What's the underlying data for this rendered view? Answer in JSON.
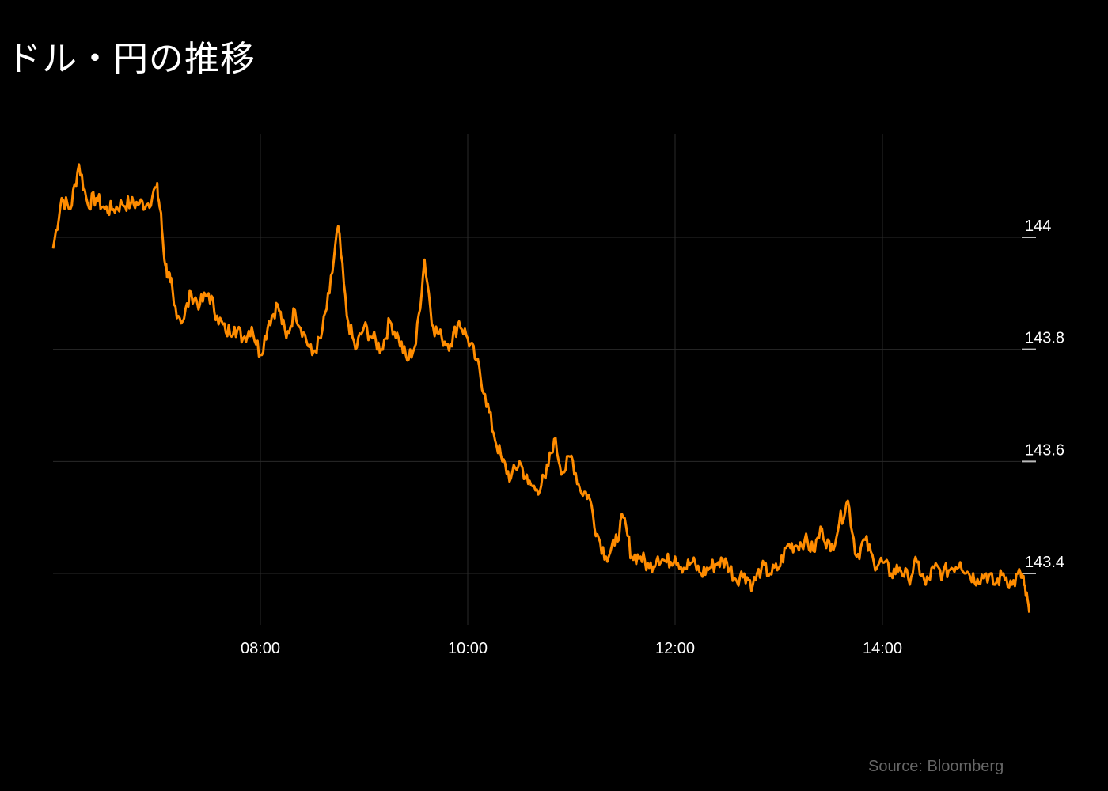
{
  "chart_data": {
    "type": "line",
    "title": "ドル・円の推移",
    "source": "Source: Bloomberg",
    "xlabel": "",
    "ylabel": "",
    "x_tick_labels": [
      "08:00",
      "10:00",
      "12:00",
      "14:00"
    ],
    "x_ticks_hours": [
      8,
      10,
      12,
      14
    ],
    "y_tick_labels": [
      "144",
      "143.8",
      "143.6",
      "143.4"
    ],
    "y_ticks": [
      144,
      143.8,
      143.6,
      143.4
    ],
    "ylim": [
      143.3,
      144.15
    ],
    "xlim": [
      "06:00",
      "15:25"
    ],
    "grid": true,
    "y_axis_side": "right",
    "colors": {
      "line": "#ff8c00",
      "background": "#000000",
      "grid": "#2a2a2a"
    },
    "series": [
      {
        "x": [
          "06:00",
          "06:05",
          "06:10",
          "06:15",
          "06:20",
          "06:25",
          "06:30",
          "06:35",
          "06:40",
          "06:45",
          "06:50",
          "06:55",
          "07:00",
          "07:02",
          "07:05",
          "07:08",
          "07:10",
          "07:15",
          "07:20",
          "07:25",
          "07:30",
          "07:35",
          "07:40",
          "07:45",
          "07:50",
          "07:55",
          "08:00",
          "08:05",
          "08:10",
          "08:15",
          "08:20",
          "08:25",
          "08:30",
          "08:35",
          "08:40",
          "08:45",
          "08:50",
          "08:55",
          "09:00",
          "09:05",
          "09:10",
          "09:15",
          "09:20",
          "09:25",
          "09:30",
          "09:35",
          "09:40",
          "09:45",
          "09:50",
          "09:55",
          "10:00",
          "10:05",
          "10:10",
          "10:15",
          "10:20",
          "10:25",
          "10:30",
          "10:35",
          "10:40",
          "10:45",
          "10:50",
          "10:55",
          "11:00",
          "11:05",
          "11:10",
          "11:15",
          "11:20",
          "11:25",
          "11:30",
          "11:35",
          "11:40",
          "11:45",
          "11:50",
          "11:55",
          "12:00",
          "12:05",
          "12:10",
          "12:15",
          "12:20",
          "12:25",
          "12:30",
          "12:35",
          "12:40",
          "12:45",
          "12:50",
          "12:55",
          "13:00",
          "13:05",
          "13:10",
          "13:15",
          "13:20",
          "13:25",
          "13:30",
          "13:35",
          "13:40",
          "13:45",
          "13:50",
          "13:55",
          "14:00",
          "14:05",
          "14:10",
          "14:15",
          "14:20",
          "14:25",
          "14:30",
          "14:35",
          "14:40",
          "14:45",
          "14:50",
          "14:55",
          "15:00",
          "15:05",
          "15:10",
          "15:15",
          "15:20",
          "15:22",
          "15:25"
        ],
        "y": [
          143.98,
          144.07,
          144.05,
          144.13,
          144.06,
          144.07,
          144.05,
          144.05,
          144.06,
          144.06,
          144.06,
          144.06,
          144.09,
          144.05,
          143.95,
          143.92,
          143.88,
          143.85,
          143.9,
          143.88,
          143.9,
          143.86,
          143.83,
          143.84,
          143.82,
          143.84,
          143.79,
          143.85,
          143.88,
          143.82,
          143.87,
          143.83,
          143.79,
          143.82,
          143.9,
          144.02,
          143.86,
          143.8,
          143.84,
          143.82,
          143.8,
          143.85,
          143.82,
          143.78,
          143.81,
          143.96,
          143.84,
          143.82,
          143.81,
          143.85,
          143.82,
          143.78,
          143.72,
          143.65,
          143.6,
          143.57,
          143.6,
          143.56,
          143.55,
          143.57,
          143.64,
          143.58,
          143.61,
          143.55,
          143.54,
          143.47,
          143.43,
          143.45,
          143.5,
          143.43,
          143.43,
          143.41,
          143.43,
          143.42,
          143.43,
          143.41,
          143.42,
          143.4,
          143.41,
          143.42,
          143.42,
          143.39,
          143.4,
          143.38,
          143.41,
          143.4,
          143.41,
          143.45,
          143.45,
          143.46,
          143.44,
          143.48,
          143.44,
          143.49,
          143.53,
          143.43,
          143.46,
          143.42,
          143.42,
          143.4,
          143.41,
          143.39,
          143.42,
          143.38,
          143.41,
          143.4,
          143.41,
          143.42,
          143.4,
          143.39,
          143.4,
          143.38,
          143.4,
          143.38,
          143.4,
          143.38,
          143.33
        ]
      }
    ]
  }
}
